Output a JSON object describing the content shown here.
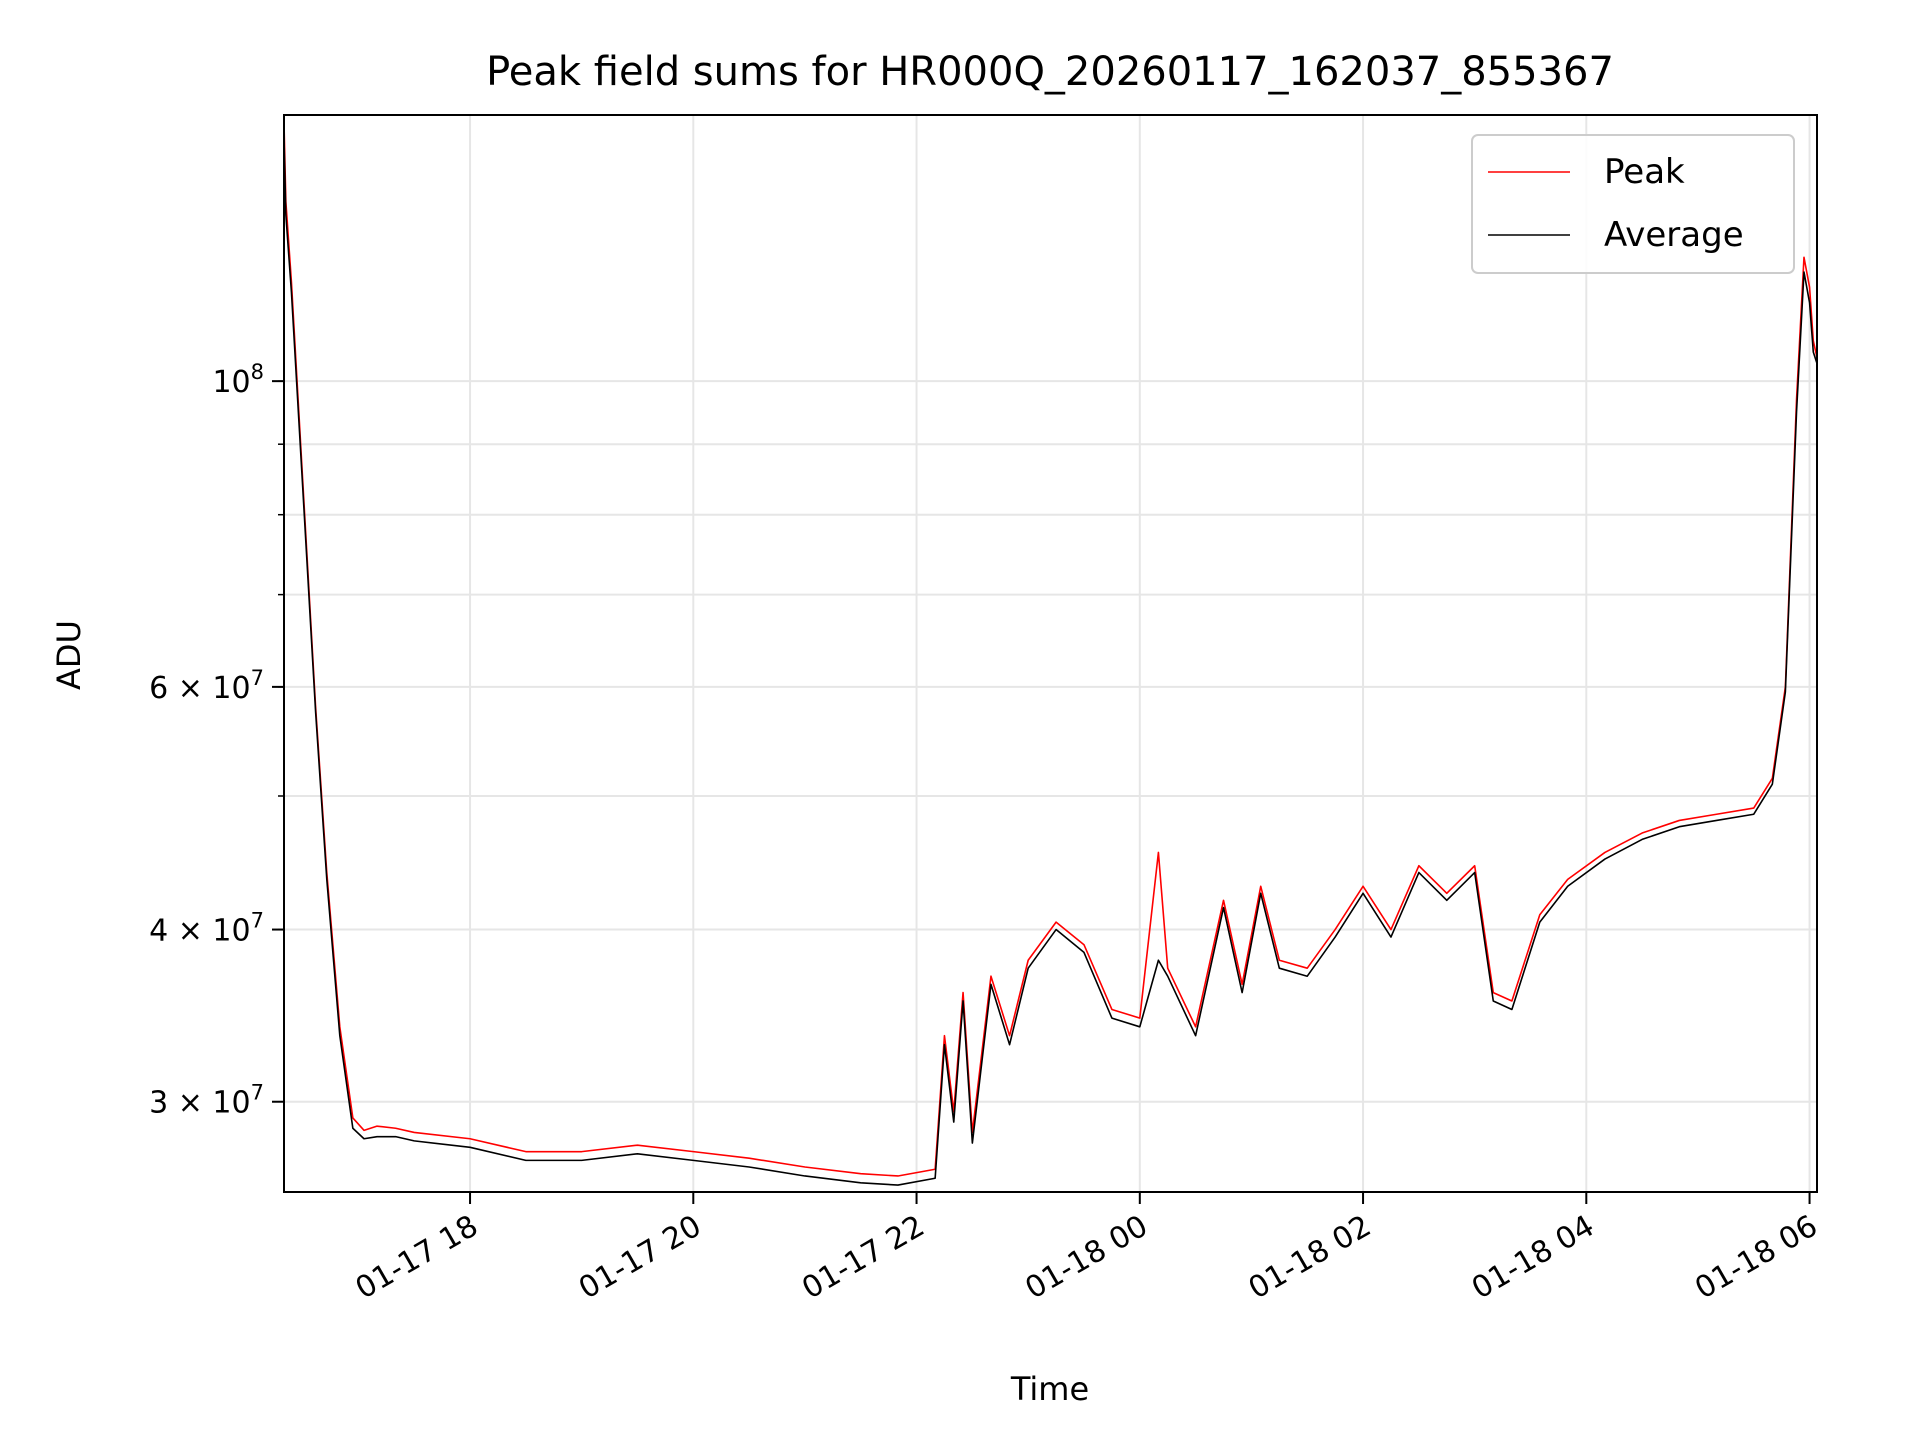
{
  "chart_data": {
    "type": "line",
    "title": "Peak field sums for HR000Q_20260117_162037_855367",
    "xlabel": "Time",
    "ylabel": "ADU",
    "y_scale": "log",
    "grid": true,
    "legend_position": "top-right",
    "xlim": [
      "2026-01-17 16:20",
      "2026-01-18 06:04"
    ],
    "ylim": [
      25800000,
      156000000
    ],
    "x_ticks": [
      {
        "value": "2026-01-17 18:00",
        "label": "01-17 18"
      },
      {
        "value": "2026-01-17 20:00",
        "label": "01-17 20"
      },
      {
        "value": "2026-01-17 22:00",
        "label": "01-17 22"
      },
      {
        "value": "2026-01-18 00:00",
        "label": "01-18 00"
      },
      {
        "value": "2026-01-18 02:00",
        "label": "01-18 02"
      },
      {
        "value": "2026-01-18 04:00",
        "label": "01-18 04"
      },
      {
        "value": "2026-01-18 06:00",
        "label": "01-18 06"
      }
    ],
    "y_ticks": [
      {
        "value": 30000000,
        "mantissa": "3",
        "exponent": "7"
      },
      {
        "value": 40000000,
        "mantissa": "4",
        "exponent": "7"
      },
      {
        "value": 60000000,
        "mantissa": "6",
        "exponent": "7"
      },
      {
        "value": 100000000,
        "mantissa": "",
        "exponent": "8"
      }
    ],
    "series": [
      {
        "name": "Peak",
        "color": "#ff0000",
        "x": [
          "2026-01-17 16:20",
          "2026-01-17 16:21",
          "2026-01-17 16:24",
          "2026-01-17 16:30",
          "2026-01-17 16:37",
          "2026-01-17 16:43",
          "2026-01-17 16:50",
          "2026-01-17 16:57",
          "2026-01-17 17:03",
          "2026-01-17 17:10",
          "2026-01-17 17:20",
          "2026-01-17 17:30",
          "2026-01-17 18:00",
          "2026-01-17 18:30",
          "2026-01-17 19:00",
          "2026-01-17 19:30",
          "2026-01-17 20:00",
          "2026-01-17 20:30",
          "2026-01-17 21:00",
          "2026-01-17 21:30",
          "2026-01-17 21:50",
          "2026-01-17 22:10",
          "2026-01-17 22:15",
          "2026-01-17 22:20",
          "2026-01-17 22:25",
          "2026-01-17 22:30",
          "2026-01-17 22:40",
          "2026-01-17 22:50",
          "2026-01-17 23:00",
          "2026-01-17 23:15",
          "2026-01-17 23:30",
          "2026-01-17 23:45",
          "2026-01-18 00:00",
          "2026-01-18 00:10",
          "2026-01-18 00:15",
          "2026-01-18 00:30",
          "2026-01-18 00:45",
          "2026-01-18 00:55",
          "2026-01-18 01:05",
          "2026-01-18 01:15",
          "2026-01-18 01:30",
          "2026-01-18 01:45",
          "2026-01-18 02:00",
          "2026-01-18 02:15",
          "2026-01-18 02:30",
          "2026-01-18 02:45",
          "2026-01-18 03:00",
          "2026-01-18 03:10",
          "2026-01-18 03:20",
          "2026-01-18 03:35",
          "2026-01-18 03:50",
          "2026-01-18 04:10",
          "2026-01-18 04:30",
          "2026-01-18 04:50",
          "2026-01-18 05:10",
          "2026-01-18 05:30",
          "2026-01-18 05:40",
          "2026-01-18 05:47",
          "2026-01-18 05:53",
          "2026-01-18 05:57",
          "2026-01-18 06:00",
          "2026-01-18 06:02",
          "2026-01-18 06:04"
        ],
        "values": [
          154000000,
          135000000,
          118000000,
          85000000,
          58000000,
          44000000,
          34000000,
          29200000,
          28600000,
          28800000,
          28700000,
          28500000,
          28200000,
          27600000,
          27600000,
          27900000,
          27600000,
          27300000,
          26900000,
          26600000,
          26500000,
          26800000,
          33500000,
          29500000,
          36000000,
          28500000,
          37000000,
          33500000,
          38000000,
          40500000,
          39000000,
          35000000,
          34500000,
          45500000,
          37500000,
          34000000,
          42000000,
          36500000,
          43000000,
          38000000,
          37500000,
          40000000,
          43000000,
          40000000,
          44500000,
          42500000,
          44500000,
          36000000,
          35500000,
          41000000,
          43500000,
          45500000,
          47000000,
          48000000,
          48500000,
          49000000,
          51500000,
          60000000,
          97000000,
          123000000,
          117000000,
          107000000,
          104000000
        ]
      },
      {
        "name": "Average",
        "color": "#000000",
        "x": [
          "2026-01-17 16:20",
          "2026-01-17 16:21",
          "2026-01-17 16:24",
          "2026-01-17 16:30",
          "2026-01-17 16:37",
          "2026-01-17 16:43",
          "2026-01-17 16:50",
          "2026-01-17 16:57",
          "2026-01-17 17:03",
          "2026-01-17 17:10",
          "2026-01-17 17:20",
          "2026-01-17 17:30",
          "2026-01-17 18:00",
          "2026-01-17 18:30",
          "2026-01-17 19:00",
          "2026-01-17 19:30",
          "2026-01-17 20:00",
          "2026-01-17 20:30",
          "2026-01-17 21:00",
          "2026-01-17 21:30",
          "2026-01-17 21:50",
          "2026-01-17 22:10",
          "2026-01-17 22:15",
          "2026-01-17 22:20",
          "2026-01-17 22:25",
          "2026-01-17 22:30",
          "2026-01-17 22:40",
          "2026-01-17 22:50",
          "2026-01-17 23:00",
          "2026-01-17 23:15",
          "2026-01-17 23:30",
          "2026-01-17 23:45",
          "2026-01-18 00:00",
          "2026-01-18 00:10",
          "2026-01-18 00:15",
          "2026-01-18 00:30",
          "2026-01-18 00:45",
          "2026-01-18 00:55",
          "2026-01-18 01:05",
          "2026-01-18 01:15",
          "2026-01-18 01:30",
          "2026-01-18 01:45",
          "2026-01-18 02:00",
          "2026-01-18 02:15",
          "2026-01-18 02:30",
          "2026-01-18 02:45",
          "2026-01-18 03:00",
          "2026-01-18 03:10",
          "2026-01-18 03:20",
          "2026-01-18 03:35",
          "2026-01-18 03:50",
          "2026-01-18 04:10",
          "2026-01-18 04:30",
          "2026-01-18 04:50",
          "2026-01-18 05:10",
          "2026-01-18 05:30",
          "2026-01-18 05:40",
          "2026-01-18 05:47",
          "2026-01-18 05:53",
          "2026-01-18 05:57",
          "2026-01-18 06:00",
          "2026-01-18 06:02",
          "2026-01-18 06:04"
        ],
        "values": [
          150000000,
          132000000,
          116000000,
          84000000,
          57500000,
          43500000,
          33500000,
          28700000,
          28200000,
          28300000,
          28300000,
          28100000,
          27800000,
          27200000,
          27200000,
          27500000,
          27200000,
          26900000,
          26500000,
          26200000,
          26100000,
          26400000,
          33000000,
          29000000,
          35500000,
          28000000,
          36500000,
          33000000,
          37500000,
          40000000,
          38500000,
          34500000,
          34000000,
          38000000,
          37000000,
          33500000,
          41500000,
          36000000,
          42500000,
          37500000,
          37000000,
          39500000,
          42500000,
          39500000,
          44000000,
          42000000,
          44000000,
          35500000,
          35000000,
          40500000,
          43000000,
          45000000,
          46500000,
          47500000,
          48000000,
          48500000,
          51000000,
          59500000,
          95000000,
          120000000,
          114000000,
          105000000,
          103000000
        ]
      }
    ]
  }
}
